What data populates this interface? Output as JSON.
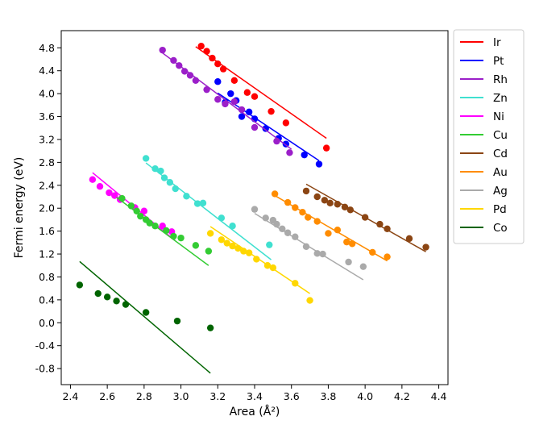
{
  "chart_data": {
    "type": "scatter",
    "xlabel": "Area (Å²)",
    "ylabel": "Fermi energy (eV)",
    "xlim": [
      2.35,
      4.45
    ],
    "ylim": [
      -1.08,
      5.1
    ],
    "xticks": [
      "2.4",
      "2.6",
      "2.8",
      "3.0",
      "3.2",
      "3.4",
      "3.6",
      "3.8",
      "4.0",
      "4.2",
      "4.4"
    ],
    "yticks": [
      "-0.8",
      "-0.4",
      "0.0",
      "0.4",
      "0.8",
      "1.2",
      "1.6",
      "2.0",
      "2.4",
      "2.8",
      "3.2",
      "3.6",
      "4.0",
      "4.4",
      "4.8"
    ],
    "legend_position": "outside-right",
    "grid": false,
    "series": [
      {
        "name": "Ir",
        "color": "#ff0000",
        "x": [
          3.11,
          3.14,
          3.17,
          3.2,
          3.23,
          3.29,
          3.36,
          3.4,
          3.49,
          3.57,
          3.79
        ],
        "y": [
          4.83,
          4.74,
          4.62,
          4.52,
          4.43,
          4.23,
          4.02,
          3.95,
          3.69,
          3.49,
          3.05
        ],
        "fit": [
          [
            3.08,
            4.82
          ],
          [
            3.79,
            3.22
          ]
        ]
      },
      {
        "name": "Pt",
        "color": "#0000ff",
        "x": [
          3.2,
          3.24,
          3.27,
          3.3,
          3.33,
          3.37,
          3.4,
          3.46,
          3.53,
          3.57,
          3.67,
          3.75
        ],
        "y": [
          4.21,
          3.85,
          4.0,
          3.88,
          3.6,
          3.68,
          3.56,
          3.39,
          3.22,
          3.12,
          2.93,
          2.77
        ],
        "fit": [
          [
            3.2,
            4.01
          ],
          [
            3.75,
            2.83
          ]
        ]
      },
      {
        "name": "Rh",
        "color": "#9b1fc9",
        "x": [
          2.9,
          2.96,
          2.99,
          3.02,
          3.05,
          3.08,
          3.14,
          3.2,
          3.24,
          3.29,
          3.33,
          3.4,
          3.52,
          3.59
        ],
        "y": [
          4.76,
          4.58,
          4.49,
          4.39,
          4.32,
          4.23,
          4.07,
          3.9,
          3.82,
          3.86,
          3.72,
          3.41,
          3.17,
          2.97
        ],
        "fit": [
          [
            2.9,
            4.71
          ],
          [
            3.6,
            3.03
          ]
        ]
      },
      {
        "name": "Zn",
        "color": "#40e0d0",
        "x": [
          2.81,
          2.86,
          2.89,
          2.91,
          2.94,
          2.97,
          3.03,
          3.09,
          3.12,
          3.22,
          3.28,
          3.48
        ],
        "y": [
          2.87,
          2.69,
          2.65,
          2.53,
          2.45,
          2.34,
          2.21,
          2.08,
          2.09,
          1.83,
          1.69,
          1.36
        ],
        "fit": [
          [
            2.81,
            2.79
          ],
          [
            3.49,
            1.1
          ]
        ]
      },
      {
        "name": "Ni",
        "color": "#ff00ff",
        "x": [
          2.52,
          2.56,
          2.61,
          2.64,
          2.67,
          2.75,
          2.8,
          2.9,
          2.95
        ],
        "y": [
          2.5,
          2.38,
          2.27,
          2.22,
          2.15,
          2.01,
          1.95,
          1.69,
          1.59
        ],
        "fit": [
          [
            2.52,
            2.62
          ],
          [
            2.97,
            1.43
          ]
        ]
      },
      {
        "name": "Cu",
        "color": "#33cc33",
        "x": [
          2.68,
          2.73,
          2.76,
          2.78,
          2.81,
          2.83,
          2.86,
          2.92,
          2.96,
          3.0,
          3.08,
          3.15
        ],
        "y": [
          2.17,
          2.04,
          1.95,
          1.86,
          1.8,
          1.74,
          1.69,
          1.61,
          1.51,
          1.48,
          1.35,
          1.25
        ],
        "fit": [
          [
            2.65,
            2.19
          ],
          [
            3.15,
            1.0
          ]
        ]
      },
      {
        "name": "Cd",
        "color": "#8b4513",
        "x": [
          3.68,
          3.74,
          3.78,
          3.81,
          3.85,
          3.89,
          3.92,
          4.0,
          4.08,
          4.12,
          4.24,
          4.33
        ],
        "y": [
          2.3,
          2.2,
          2.14,
          2.09,
          2.07,
          2.02,
          1.97,
          1.84,
          1.72,
          1.64,
          1.47,
          1.32
        ],
        "fit": [
          [
            3.68,
            2.42
          ],
          [
            4.33,
            1.24
          ]
        ]
      },
      {
        "name": "Au",
        "color": "#ff8c00",
        "x": [
          3.51,
          3.58,
          3.62,
          3.66,
          3.69,
          3.74,
          3.8,
          3.85,
          3.9,
          3.93,
          4.04,
          4.12
        ],
        "y": [
          2.25,
          2.1,
          2.01,
          1.93,
          1.84,
          1.77,
          1.56,
          1.62,
          1.41,
          1.38,
          1.23,
          1.15
        ],
        "fit": [
          [
            3.51,
            2.22
          ],
          [
            4.12,
            1.08
          ]
        ]
      },
      {
        "name": "Ag",
        "color": "#aaaaaa",
        "x": [
          3.4,
          3.46,
          3.5,
          3.52,
          3.55,
          3.58,
          3.62,
          3.68,
          3.74,
          3.77,
          3.91,
          3.99
        ],
        "y": [
          1.98,
          1.83,
          1.79,
          1.72,
          1.64,
          1.57,
          1.5,
          1.33,
          1.21,
          1.2,
          1.06,
          0.98
        ],
        "fit": [
          [
            3.4,
            1.91
          ],
          [
            3.99,
            0.75
          ]
        ]
      },
      {
        "name": "Pd",
        "color": "#ffd700",
        "x": [
          3.16,
          3.22,
          3.25,
          3.28,
          3.31,
          3.34,
          3.37,
          3.41,
          3.47,
          3.5,
          3.62,
          3.7
        ],
        "y": [
          1.56,
          1.45,
          1.39,
          1.34,
          1.3,
          1.25,
          1.22,
          1.11,
          1.0,
          0.96,
          0.69,
          0.39
        ],
        "fit": [
          [
            3.16,
            1.68
          ],
          [
            3.7,
            0.51
          ]
        ]
      },
      {
        "name": "Co",
        "color": "#006400",
        "x": [
          2.45,
          2.55,
          2.6,
          2.65,
          2.7,
          2.81,
          2.98,
          3.16
        ],
        "y": [
          0.66,
          0.51,
          0.45,
          0.38,
          0.32,
          0.18,
          0.03,
          -0.09
        ],
        "fit": [
          [
            2.45,
            1.07
          ],
          [
            3.16,
            -0.88
          ]
        ]
      }
    ]
  }
}
